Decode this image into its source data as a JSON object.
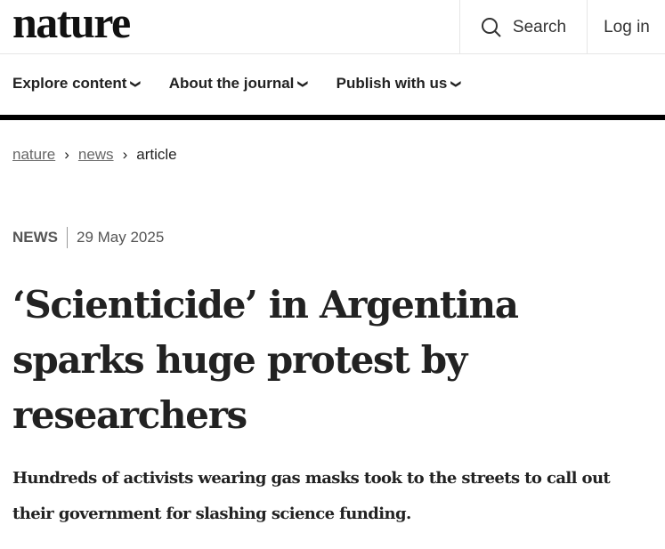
{
  "header": {
    "logo": "nature",
    "search_label": "Search",
    "login_label": "Log in"
  },
  "nav": [
    {
      "label": "Explore content"
    },
    {
      "label": "About the journal"
    },
    {
      "label": "Publish with us"
    }
  ],
  "breadcrumb": {
    "items": [
      "nature",
      "news",
      "article"
    ]
  },
  "article": {
    "type": "NEWS",
    "date": "29 May 2025",
    "title": "‘Scienticide’ in Argentina sparks huge protest by researchers",
    "standfirst": "Hundreds of activists wearing gas masks took to the streets to call out their government for slashing science funding."
  }
}
